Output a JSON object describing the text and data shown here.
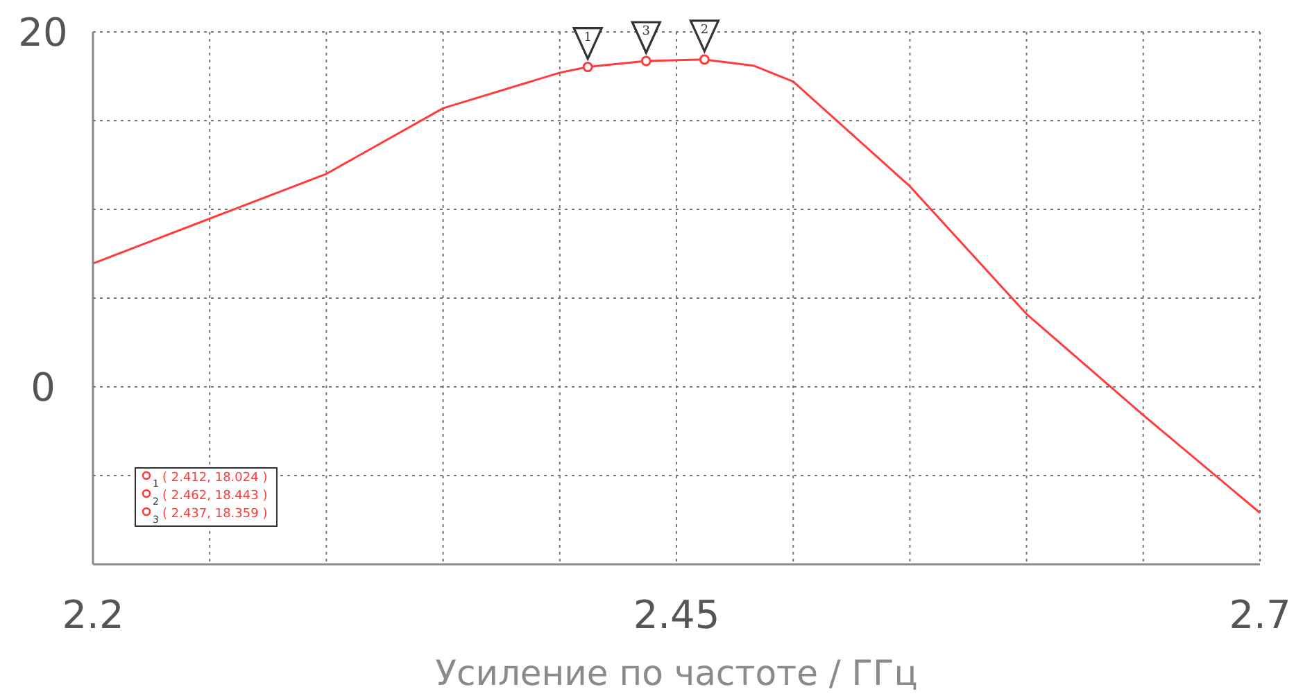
{
  "chart_data": {
    "type": "line",
    "xlabel": "Усиление по частоте / ГГц",
    "xlim": [
      2.2,
      2.7
    ],
    "xticks": [
      2.2,
      {
        "value": 2.25,
        "label": null
      },
      {
        "value": 2.3,
        "label": null
      },
      {
        "value": 2.35,
        "label": null
      },
      {
        "value": 2.4,
        "label": null
      },
      2.45,
      {
        "value": 2.5,
        "label": null
      },
      {
        "value": 2.55,
        "label": null
      },
      {
        "value": 2.6,
        "label": null
      },
      {
        "value": 2.65,
        "label": null
      },
      2.7
    ],
    "ylim": [
      -10,
      20
    ],
    "yticks": [
      {
        "value": -10,
        "label": null
      },
      {
        "value": -5,
        "label": null
      },
      0,
      {
        "value": 5,
        "label": null
      },
      {
        "value": 10,
        "label": null
      },
      {
        "value": 15,
        "label": null
      },
      20
    ],
    "grid": true,
    "series": [
      {
        "type": "line",
        "color": "#ff3b3b",
        "marker": "none",
        "x": [
          2.2,
          2.3,
          2.35,
          2.4,
          2.412,
          2.437,
          2.462,
          2.483,
          2.5,
          2.55,
          2.6,
          2.65,
          2.7
        ],
        "values": [
          6.95,
          12.0,
          15.7,
          17.7,
          18.024,
          18.359,
          18.443,
          18.1,
          17.2,
          11.3,
          4.1,
          -1.6,
          -7.1
        ]
      },
      {
        "type": "scatter",
        "color": "#ff3b3b",
        "marker": "circle",
        "x": [
          2.412,
          2.437,
          2.462
        ],
        "values": [
          18.024,
          18.359,
          18.443
        ]
      }
    ],
    "annotations": [
      {
        "text": "1",
        "x": 2.412,
        "y": 18.024
      },
      {
        "text": "2",
        "x": 2.462,
        "y": 18.443
      },
      {
        "text": "3",
        "x": 2.437,
        "y": 18.359
      },
      "( 2.412, 18.024 )",
      "( 2.462, 18.443 )",
      "( 2.437, 18.359 )"
    ]
  }
}
